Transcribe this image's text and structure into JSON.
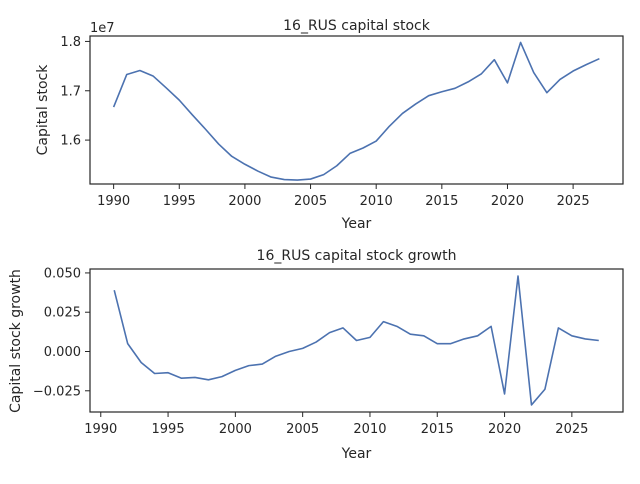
{
  "chart_data": [
    {
      "type": "line",
      "title": "16_RUS capital stock",
      "xlabel": "Year",
      "ylabel": "Capital stock",
      "offset_label": "1e7",
      "xlim": [
        1988.2,
        2028.8
      ],
      "ylim": [
        1.511,
        1.811
      ],
      "xticks": [
        1990,
        1995,
        2000,
        2005,
        2010,
        2015,
        2020,
        2025
      ],
      "xtick_labels": [
        "1990",
        "1995",
        "2000",
        "2005",
        "2010",
        "2015",
        "2020",
        "2025"
      ],
      "yticks": [
        1.6,
        1.7,
        1.8
      ],
      "ytick_labels": [
        "1.6",
        "1.7",
        "1.8"
      ],
      "grid": false,
      "series": [
        {
          "color": "#4c72b0",
          "x": [
            1990,
            1991,
            1992,
            1993,
            1994,
            1995,
            1996,
            1997,
            1998,
            1999,
            2000,
            2001,
            2002,
            2003,
            2004,
            2005,
            2006,
            2007,
            2008,
            2009,
            2010,
            2011,
            2012,
            2013,
            2014,
            2015,
            2016,
            2017,
            2018,
            2019,
            2020,
            2021,
            2022,
            2023,
            2024,
            2025,
            2026,
            2027
          ],
          "y": [
            1.667,
            1.733,
            1.741,
            1.73,
            1.706,
            1.681,
            1.651,
            1.622,
            1.592,
            1.567,
            1.551,
            1.537,
            1.525,
            1.52,
            1.519,
            1.521,
            1.53,
            1.548,
            1.573,
            1.584,
            1.598,
            1.628,
            1.654,
            1.673,
            1.69,
            1.698,
            1.705,
            1.718,
            1.734,
            1.763,
            1.716,
            1.798,
            1.737,
            1.696,
            1.723,
            1.74,
            1.753,
            1.765
          ]
        }
      ]
    },
    {
      "type": "line",
      "title": "16_RUS capital stock growth",
      "xlabel": "Year",
      "ylabel": "Capital stock growth",
      "xlim": [
        1989.2,
        2028.8
      ],
      "ylim": [
        -0.0385,
        0.0525
      ],
      "xticks": [
        1990,
        1995,
        2000,
        2005,
        2010,
        2015,
        2020,
        2025
      ],
      "xtick_labels": [
        "1990",
        "1995",
        "2000",
        "2005",
        "2010",
        "2015",
        "2020",
        "2025"
      ],
      "yticks": [
        -0.025,
        0.0,
        0.025,
        0.05
      ],
      "ytick_labels": [
        "−0.025",
        "0.000",
        "0.025",
        "0.050"
      ],
      "grid": false,
      "series": [
        {
          "color": "#4c72b0",
          "x": [
            1991,
            1992,
            1993,
            1994,
            1995,
            1996,
            1997,
            1998,
            1999,
            2000,
            2001,
            2002,
            2003,
            2004,
            2005,
            2006,
            2007,
            2008,
            2009,
            2010,
            2011,
            2012,
            2013,
            2014,
            2015,
            2016,
            2017,
            2018,
            2019,
            2020,
            2021,
            2022,
            2023,
            2024,
            2025,
            2026,
            2027
          ],
          "y": [
            0.039,
            0.005,
            -0.007,
            -0.014,
            -0.0135,
            -0.017,
            -0.0165,
            -0.018,
            -0.016,
            -0.012,
            -0.009,
            -0.008,
            -0.003,
            0.0,
            0.002,
            0.006,
            0.012,
            0.015,
            0.007,
            0.009,
            0.019,
            0.016,
            0.011,
            0.01,
            0.005,
            0.005,
            0.008,
            0.01,
            0.016,
            -0.027,
            0.048,
            -0.034,
            -0.024,
            0.015,
            0.01,
            0.008,
            0.007
          ]
        }
      ]
    }
  ]
}
